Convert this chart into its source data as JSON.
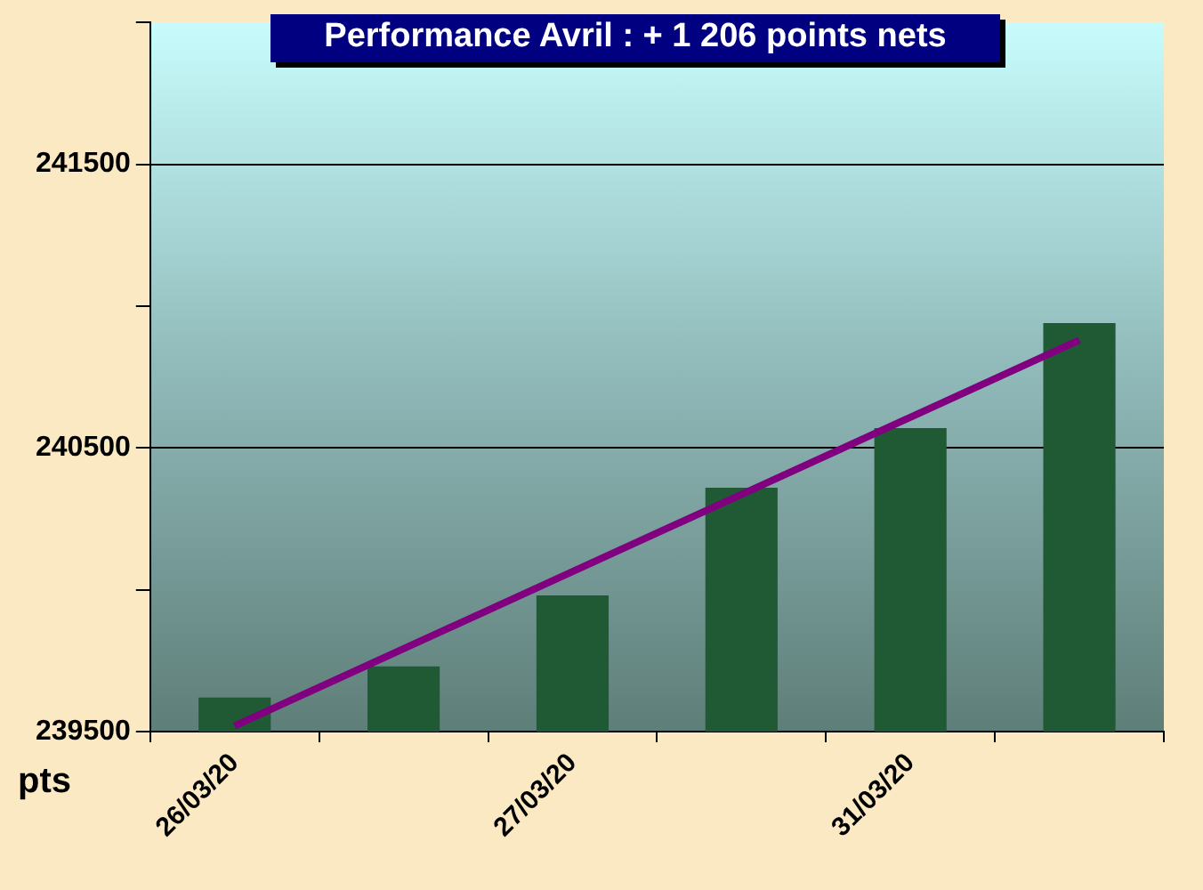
{
  "chart_data": {
    "type": "bar",
    "title": "Performance  Avril : + 1 206 points nets",
    "ylabel": "pts",
    "categories": [
      "26/03/20",
      null,
      "27/03/20",
      null,
      "31/03/20",
      null
    ],
    "series": [
      {
        "color": "#1f5a34",
        "values": [
          239620,
          239730,
          239980,
          240360,
          240570,
          240940
        ]
      },
      {
        "type": "line",
        "color": "#800080",
        "values": [
          239520,
          null,
          null,
          null,
          null,
          240880
        ]
      }
    ],
    "ylim": [
      239500,
      242000
    ],
    "yticks": [
      239500,
      {
        "value": 240000,
        "label": null
      },
      240500,
      {
        "value": 241000,
        "label": null
      },
      241500,
      {
        "value": 242000,
        "label": null
      }
    ],
    "grid": "y",
    "legend": false
  }
}
